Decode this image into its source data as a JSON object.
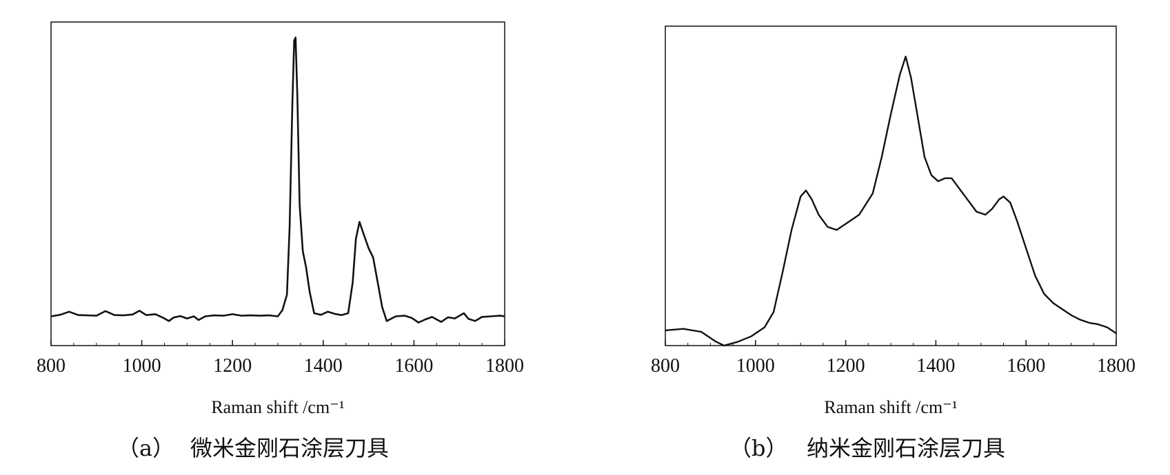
{
  "chart_data": [
    {
      "type": "line",
      "panel_label": "（a）",
      "caption": "微米金刚石涂层刀具",
      "xlabel": "Raman shift /cm⁻¹",
      "ylabel": "",
      "xlim": [
        800,
        1800
      ],
      "ylim": [
        0,
        1
      ],
      "x_ticks": [
        800,
        1000,
        1200,
        1400,
        1600,
        1800
      ],
      "grid": false,
      "series": [
        {
          "points": [
            [
              800,
              0.09
            ],
            [
              820,
              0.095
            ],
            [
              840,
              0.105
            ],
            [
              860,
              0.094
            ],
            [
              880,
              0.093
            ],
            [
              900,
              0.092
            ],
            [
              920,
              0.107
            ],
            [
              940,
              0.094
            ],
            [
              960,
              0.093
            ],
            [
              980,
              0.096
            ],
            [
              995,
              0.108
            ],
            [
              1010,
              0.094
            ],
            [
              1030,
              0.097
            ],
            [
              1045,
              0.087
            ],
            [
              1060,
              0.075
            ],
            [
              1070,
              0.086
            ],
            [
              1085,
              0.091
            ],
            [
              1100,
              0.083
            ],
            [
              1115,
              0.09
            ],
            [
              1125,
              0.078
            ],
            [
              1140,
              0.09
            ],
            [
              1160,
              0.093
            ],
            [
              1180,
              0.092
            ],
            [
              1200,
              0.097
            ],
            [
              1220,
              0.092
            ],
            [
              1240,
              0.093
            ],
            [
              1260,
              0.092
            ],
            [
              1280,
              0.093
            ],
            [
              1300,
              0.09
            ],
            [
              1310,
              0.11
            ],
            [
              1320,
              0.16
            ],
            [
              1326,
              0.38
            ],
            [
              1332,
              0.78
            ],
            [
              1336,
              0.98
            ],
            [
              1339,
              0.99
            ],
            [
              1343,
              0.8
            ],
            [
              1348,
              0.45
            ],
            [
              1355,
              0.3
            ],
            [
              1362,
              0.25
            ],
            [
              1370,
              0.17
            ],
            [
              1380,
              0.1
            ],
            [
              1395,
              0.095
            ],
            [
              1410,
              0.105
            ],
            [
              1425,
              0.098
            ],
            [
              1440,
              0.094
            ],
            [
              1455,
              0.1
            ],
            [
              1465,
              0.2
            ],
            [
              1472,
              0.34
            ],
            [
              1480,
              0.395
            ],
            [
              1488,
              0.36
            ],
            [
              1500,
              0.31
            ],
            [
              1510,
              0.28
            ],
            [
              1520,
              0.2
            ],
            [
              1530,
              0.12
            ],
            [
              1540,
              0.075
            ],
            [
              1560,
              0.09
            ],
            [
              1580,
              0.092
            ],
            [
              1595,
              0.085
            ],
            [
              1610,
              0.07
            ],
            [
              1625,
              0.08
            ],
            [
              1640,
              0.088
            ],
            [
              1660,
              0.072
            ],
            [
              1675,
              0.087
            ],
            [
              1690,
              0.083
            ],
            [
              1710,
              0.1
            ],
            [
              1720,
              0.082
            ],
            [
              1735,
              0.075
            ],
            [
              1750,
              0.088
            ],
            [
              1770,
              0.09
            ],
            [
              1790,
              0.092
            ],
            [
              1800,
              0.09
            ]
          ]
        }
      ]
    },
    {
      "type": "line",
      "panel_label": "（b）",
      "caption": "纳米金刚石涂层刀具",
      "xlabel": "Raman shift /cm⁻¹",
      "ylabel": "",
      "xlim": [
        800,
        1800
      ],
      "ylim": [
        0,
        1
      ],
      "x_ticks": [
        800,
        1000,
        1200,
        1400,
        1600,
        1800
      ],
      "grid": false,
      "series": [
        {
          "points": [
            [
              800,
              0.05
            ],
            [
              840,
              0.055
            ],
            [
              880,
              0.045
            ],
            [
              910,
              0.015
            ],
            [
              930,
              0.0
            ],
            [
              960,
              0.012
            ],
            [
              990,
              0.03
            ],
            [
              1020,
              0.06
            ],
            [
              1040,
              0.11
            ],
            [
              1060,
              0.24
            ],
            [
              1080,
              0.38
            ],
            [
              1100,
              0.49
            ],
            [
              1112,
              0.51
            ],
            [
              1125,
              0.48
            ],
            [
              1140,
              0.43
            ],
            [
              1160,
              0.39
            ],
            [
              1180,
              0.38
            ],
            [
              1200,
              0.4
            ],
            [
              1230,
              0.43
            ],
            [
              1260,
              0.5
            ],
            [
              1280,
              0.62
            ],
            [
              1300,
              0.76
            ],
            [
              1320,
              0.89
            ],
            [
              1333,
              0.95
            ],
            [
              1345,
              0.88
            ],
            [
              1360,
              0.75
            ],
            [
              1375,
              0.62
            ],
            [
              1390,
              0.56
            ],
            [
              1405,
              0.54
            ],
            [
              1420,
              0.55
            ],
            [
              1435,
              0.55
            ],
            [
              1450,
              0.52
            ],
            [
              1470,
              0.48
            ],
            [
              1490,
              0.44
            ],
            [
              1510,
              0.43
            ],
            [
              1525,
              0.45
            ],
            [
              1540,
              0.48
            ],
            [
              1550,
              0.49
            ],
            [
              1565,
              0.47
            ],
            [
              1580,
              0.41
            ],
            [
              1600,
              0.32
            ],
            [
              1620,
              0.23
            ],
            [
              1640,
              0.17
            ],
            [
              1660,
              0.14
            ],
            [
              1680,
              0.12
            ],
            [
              1700,
              0.1
            ],
            [
              1720,
              0.085
            ],
            [
              1740,
              0.075
            ],
            [
              1760,
              0.07
            ],
            [
              1780,
              0.06
            ],
            [
              1800,
              0.04
            ]
          ]
        }
      ]
    }
  ]
}
